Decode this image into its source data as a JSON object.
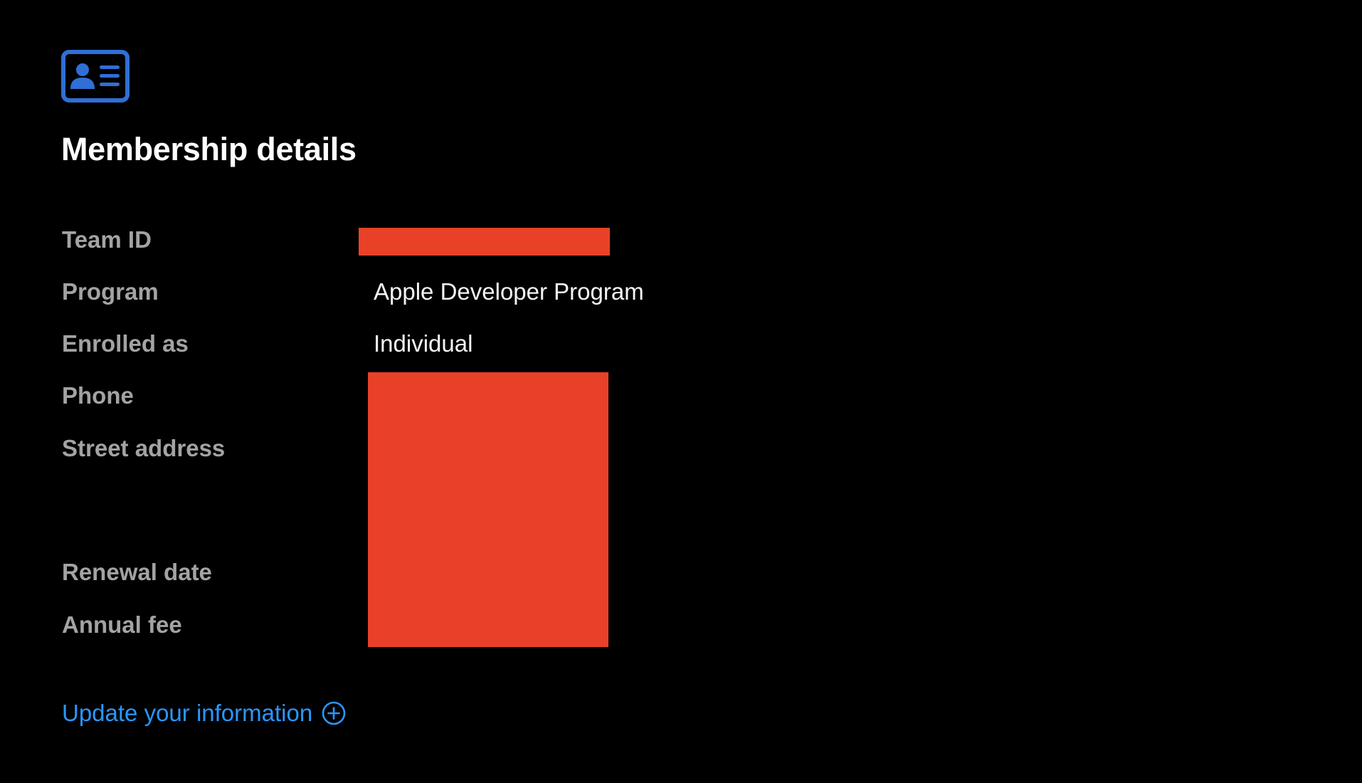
{
  "header": {
    "icon": "contact-card-icon",
    "title": "Membership details",
    "accent_color": "#2f6fd6"
  },
  "details": {
    "team_id": {
      "label": "Team ID"
    },
    "program": {
      "label": "Program",
      "value": "Apple Developer Program"
    },
    "enrolled_as": {
      "label": "Enrolled as",
      "value": "Individual"
    },
    "phone": {
      "label": "Phone"
    },
    "street_address": {
      "label": "Street address"
    },
    "renewal_date": {
      "label": "Renewal date"
    },
    "annual_fee": {
      "label": "Annual fee"
    }
  },
  "redaction_color": "#e94128",
  "update_link": {
    "label": "Update your information",
    "icon": "plus-circle-icon",
    "color": "#2997ff"
  }
}
